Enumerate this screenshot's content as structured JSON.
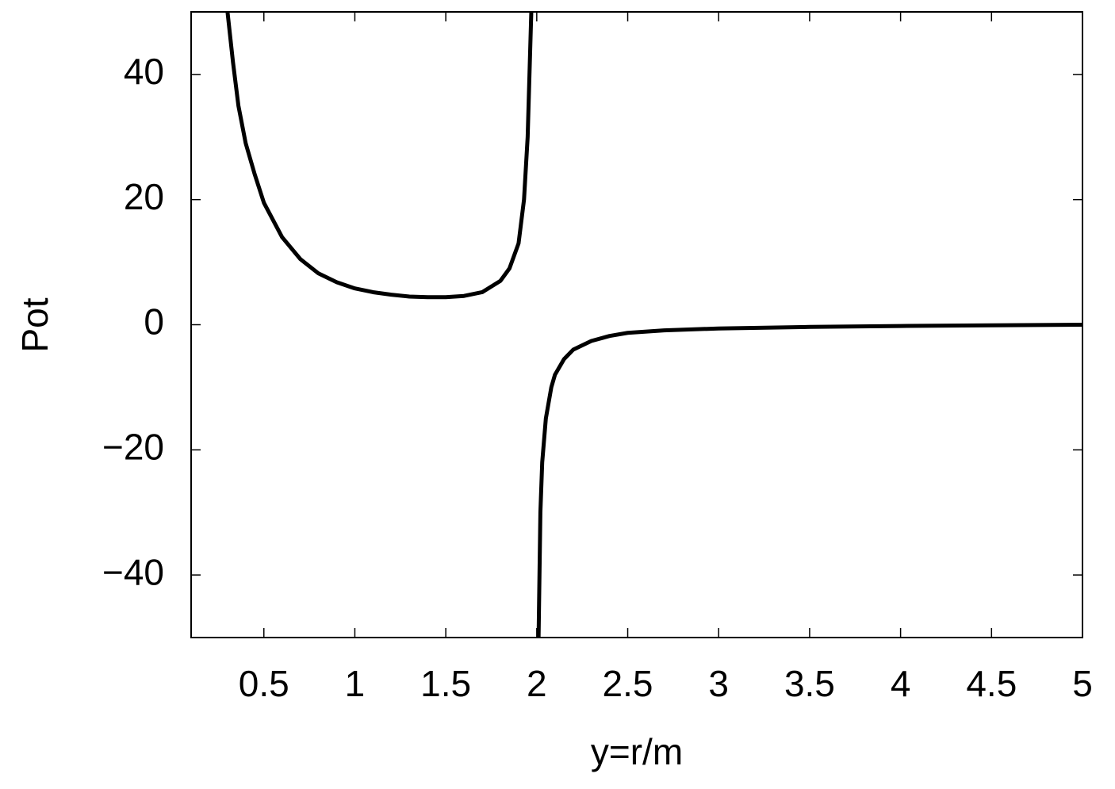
{
  "chart_data": {
    "type": "line",
    "xlabel": "y=r/m",
    "ylabel": "Pot",
    "x": [
      0.3,
      0.33,
      0.36,
      0.4,
      0.45,
      0.5,
      0.6,
      0.7,
      0.8,
      0.9,
      1.0,
      1.1,
      1.2,
      1.3,
      1.4,
      1.5,
      1.6,
      1.7,
      1.8,
      1.85,
      1.9,
      1.93,
      1.95,
      1.96,
      1.97,
      1.99,
      2.01,
      2.02,
      2.03,
      2.05,
      2.08,
      2.1,
      2.15,
      2.2,
      2.3,
      2.4,
      2.5,
      2.7,
      3.0,
      3.5,
      4.0,
      4.5,
      5.0
    ],
    "series": [
      {
        "color": "#000000",
        "values": [
          50,
          42,
          35,
          29,
          24,
          19.5,
          14,
          10.5,
          8.2,
          6.8,
          5.8,
          5.2,
          4.8,
          4.5,
          4.4,
          4.4,
          4.6,
          5.2,
          7,
          9,
          13,
          20,
          30,
          40,
          50,
          null,
          -50,
          -30,
          -22,
          -15,
          -10,
          -8,
          -5.5,
          -4,
          -2.6,
          -1.8,
          -1.3,
          -0.9,
          -0.6,
          -0.35,
          -0.2,
          -0.1,
          0
        ]
      }
    ],
    "xlim": [
      0.1,
      5
    ],
    "ylim": [
      -50,
      50
    ],
    "xticks": [
      0.5,
      1,
      1.5,
      2,
      2.5,
      3,
      3.5,
      4,
      4.5,
      5
    ],
    "yticks": [
      {
        "value": -40,
        "label": "−40"
      },
      {
        "value": -20,
        "label": "−20"
      },
      0,
      20,
      40
    ]
  }
}
